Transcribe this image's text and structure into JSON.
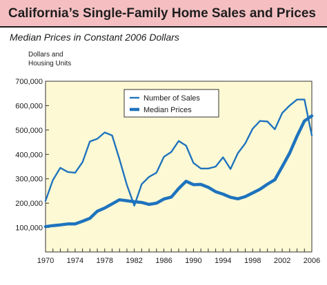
{
  "header": {
    "title": "California’s Single-Family Home Sales and Prices",
    "subtitle": "Median Prices in Constant 2006 Dollars",
    "units_line1": "Dollars and",
    "units_line2": "Housing Units"
  },
  "colors": {
    "title_band": "#f5bfc2",
    "plot_background": "#fdf9d4",
    "series": "#1e73be"
  },
  "chart_data": {
    "type": "line",
    "title": "California’s Single-Family Home Sales and Prices",
    "subtitle": "Median Prices in Constant 2006 Dollars",
    "ylabel": "Dollars and Housing Units",
    "xlim": [
      1970,
      2006
    ],
    "ylim": [
      0,
      700000
    ],
    "x_ticks": [
      1970,
      1974,
      1978,
      1982,
      1986,
      1990,
      1994,
      1998,
      2002,
      2006
    ],
    "y_ticks": [
      100000,
      200000,
      300000,
      400000,
      500000,
      600000,
      700000
    ],
    "y_tick_labels": [
      "100,000",
      "200,000",
      "300,000",
      "400,000",
      "500,000",
      "600,000",
      "700,000"
    ],
    "grid": false,
    "legend": "top-center",
    "series": [
      {
        "name": "Number of Sales",
        "style": "thin",
        "x": [
          1970,
          1971,
          1972,
          1973,
          1974,
          1975,
          1976,
          1977,
          1978,
          1979,
          1980,
          1981,
          1982,
          1983,
          1984,
          1985,
          1986,
          1987,
          1988,
          1989,
          1990,
          1991,
          1992,
          1993,
          1994,
          1995,
          1996,
          1997,
          1998,
          1999,
          2000,
          2001,
          2002,
          2003,
          2004,
          2005,
          2006
        ],
        "values": [
          210000,
          295000,
          345000,
          328000,
          325000,
          368000,
          453000,
          464000,
          490000,
          478000,
          380000,
          275000,
          190000,
          278000,
          308000,
          325000,
          390000,
          410000,
          455000,
          436000,
          365000,
          342000,
          342000,
          350000,
          388000,
          340000,
          405000,
          445000,
          505000,
          537000,
          535000,
          503000,
          570000,
          600000,
          625000,
          625000,
          478000
        ]
      },
      {
        "name": "Median Prices",
        "style": "thick",
        "x": [
          1970,
          1971,
          1972,
          1973,
          1974,
          1975,
          1976,
          1977,
          1978,
          1979,
          1980,
          1981,
          1982,
          1983,
          1984,
          1985,
          1986,
          1987,
          1988,
          1989,
          1990,
          1991,
          1992,
          1993,
          1994,
          1995,
          1996,
          1997,
          1998,
          1999,
          2000,
          2001,
          2002,
          2003,
          2004,
          2005,
          2006
        ],
        "values": [
          104000,
          108000,
          111000,
          115000,
          115000,
          126000,
          138000,
          167000,
          180000,
          197000,
          214000,
          210000,
          206000,
          203000,
          195000,
          200000,
          217000,
          225000,
          260000,
          290000,
          276000,
          277000,
          265000,
          247000,
          237000,
          224000,
          218000,
          227000,
          242000,
          257000,
          278000,
          296000,
          350000,
          405000,
          475000,
          537000,
          558000
        ]
      }
    ]
  }
}
